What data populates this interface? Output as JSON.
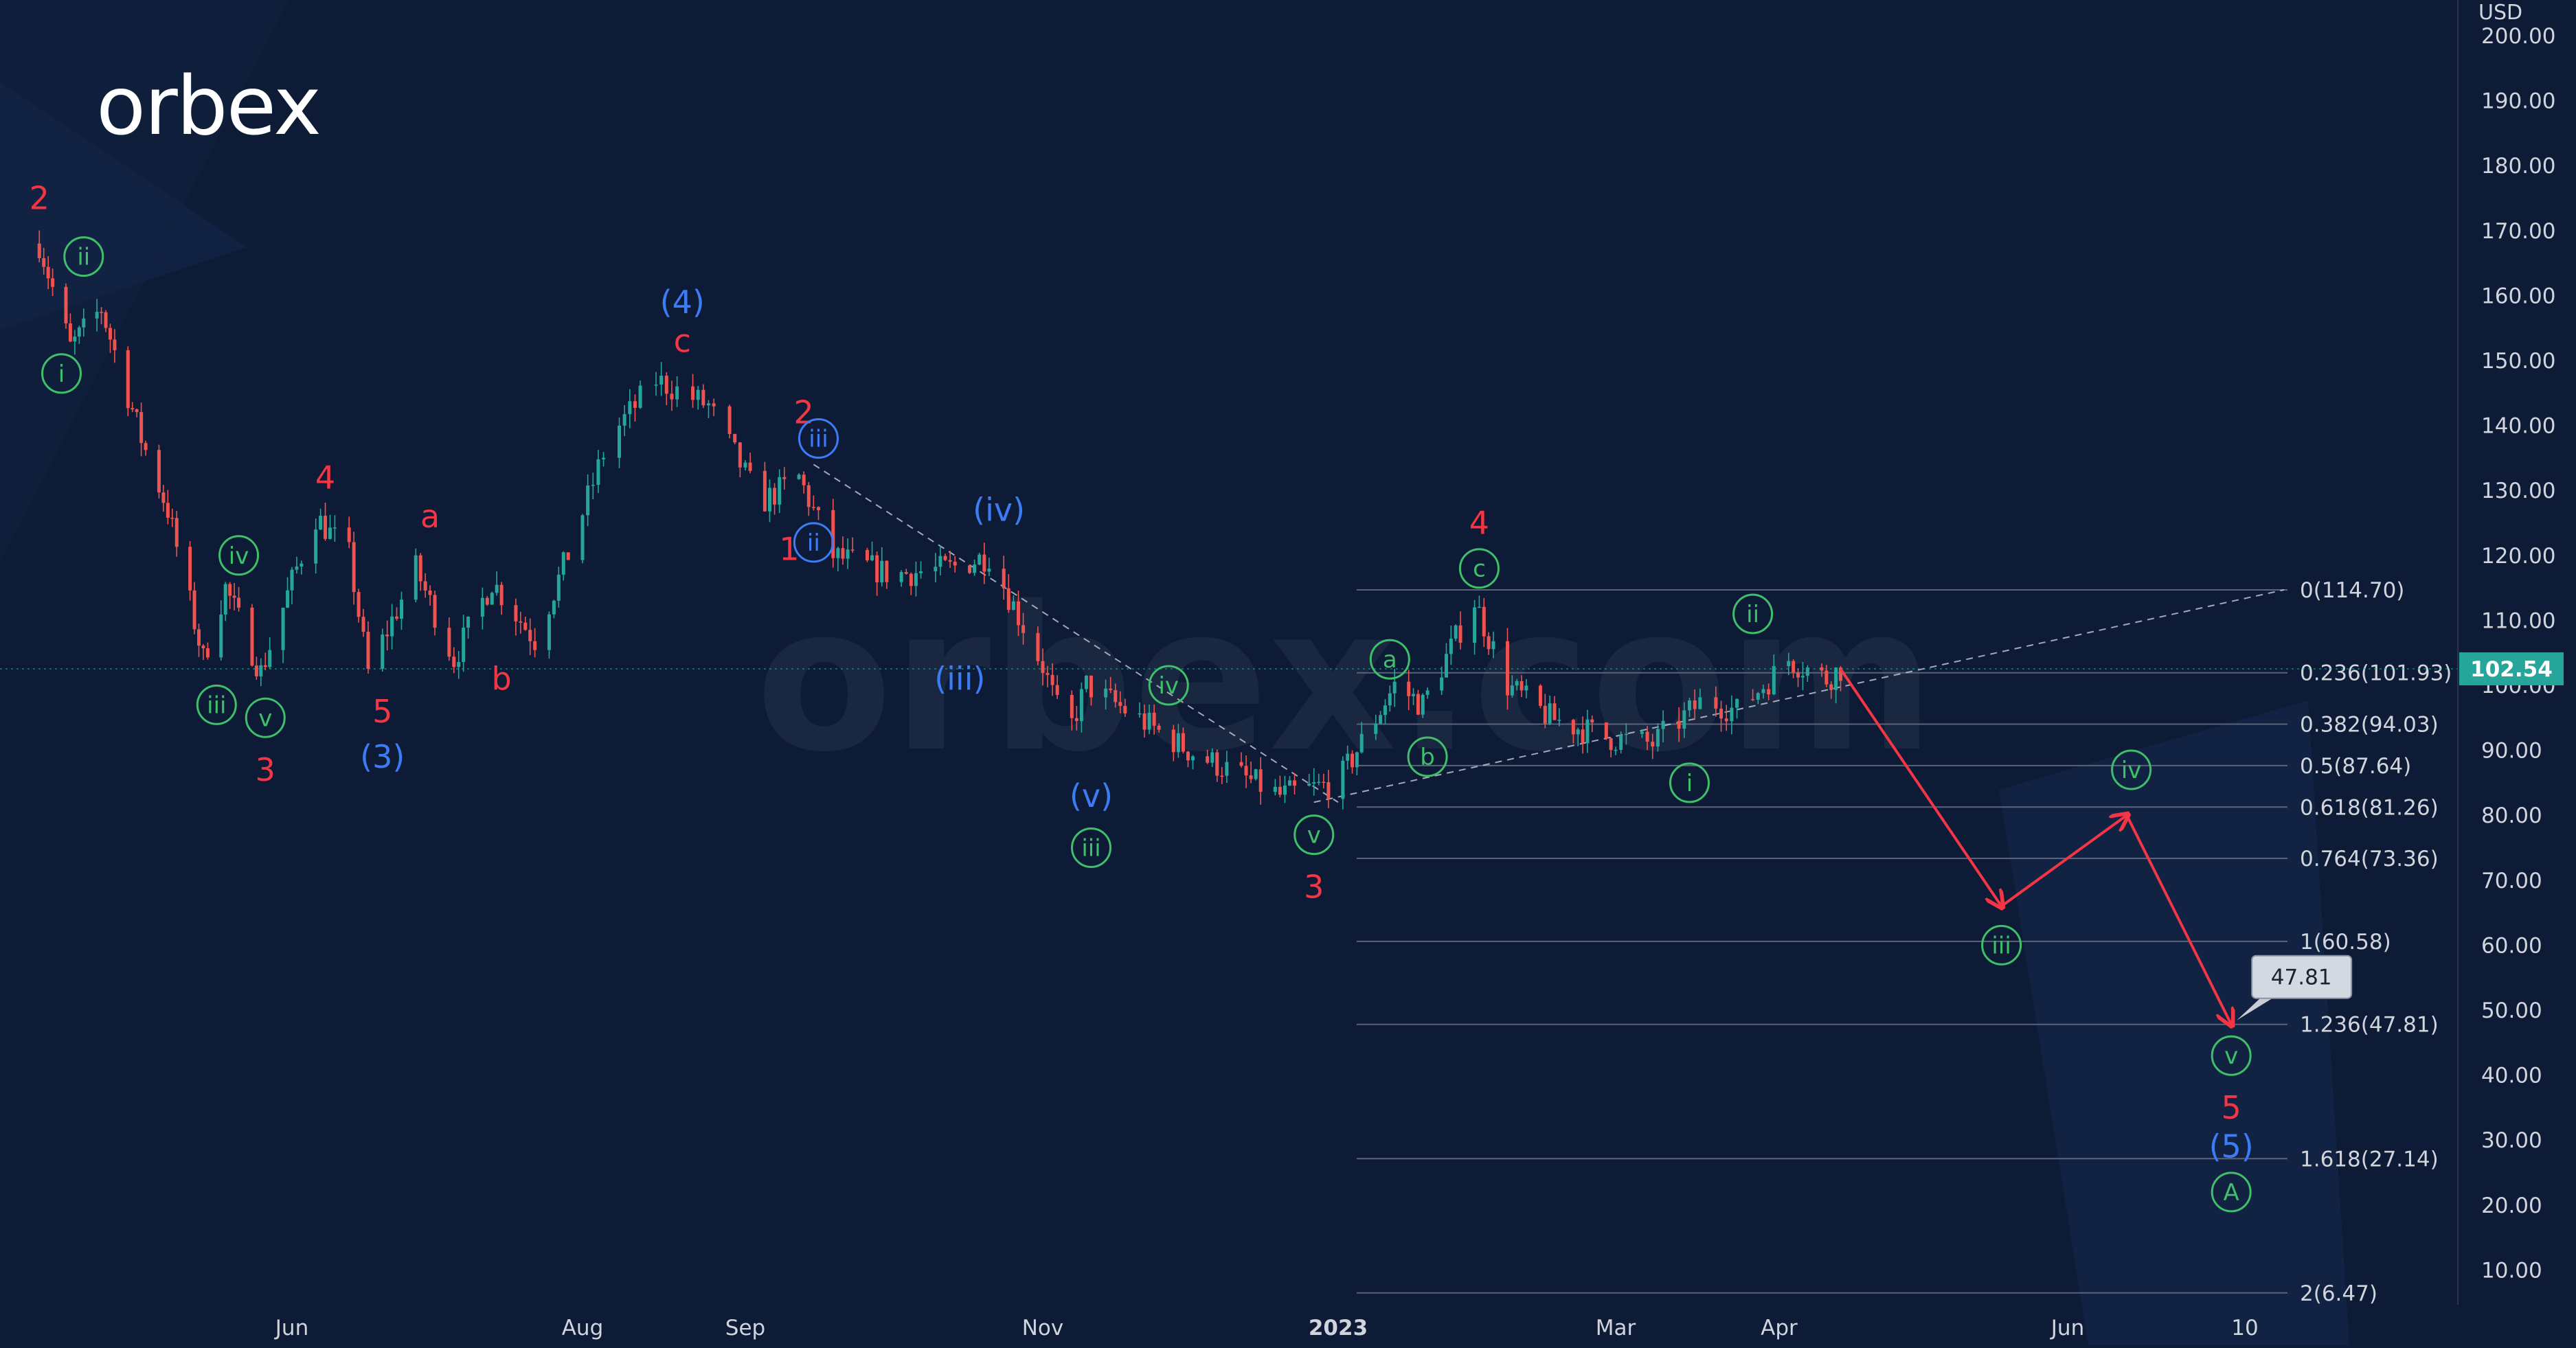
{
  "brand": {
    "logo_text": "orbex",
    "watermark": "orbex.com"
  },
  "currency": "USD",
  "chart_data": {
    "type": "candlestick",
    "title": "",
    "grid": false,
    "ylim": [
      0,
      205
    ],
    "y_ticks": [
      "10.00",
      "20.00",
      "30.00",
      "40.00",
      "50.00",
      "60.00",
      "70.00",
      "80.00",
      "90.00",
      "100.00",
      "110.00",
      "120.00",
      "130.00",
      "140.00",
      "150.00",
      "160.00",
      "170.00",
      "180.00",
      "190.00",
      "200.00"
    ],
    "x_ticks": [
      "Jun",
      "Aug",
      "Sep",
      "Nov",
      "2023",
      "Mar",
      "Apr",
      "Jun",
      "10"
    ],
    "last_price": 102.54,
    "last_price_label": "102.54",
    "target_label": "47.81",
    "fib_levels": [
      {
        "value": 114.7,
        "label": "0(114.70)"
      },
      {
        "value": 101.93,
        "label": "0.236(101.93)"
      },
      {
        "value": 94.03,
        "label": "0.382(94.03)"
      },
      {
        "value": 87.64,
        "label": "0.5(87.64)"
      },
      {
        "value": 81.26,
        "label": "0.618(81.26)"
      },
      {
        "value": 73.36,
        "label": "0.764(73.36)"
      },
      {
        "value": 60.58,
        "label": "1(60.58)"
      },
      {
        "value": 47.81,
        "label": "1.236(47.81)"
      },
      {
        "value": 27.14,
        "label": "1.618(27.14)"
      },
      {
        "value": 6.47,
        "label": "2(6.47)"
      }
    ],
    "price_path": [
      [
        "2022-04-05",
        168
      ],
      [
        "2022-04-12",
        152
      ],
      [
        "2022-04-19",
        158
      ],
      [
        "2022-04-28",
        138
      ],
      [
        "2022-05-04",
        127
      ],
      [
        "2022-05-12",
        104
      ],
      [
        "2022-05-17",
        115
      ],
      [
        "2022-05-25",
        102
      ],
      [
        "2022-06-06",
        126
      ],
      [
        "2022-06-13",
        120
      ],
      [
        "2022-06-17",
        102
      ],
      [
        "2022-06-27",
        118
      ],
      [
        "2022-07-05",
        104
      ],
      [
        "2022-07-13",
        116
      ],
      [
        "2022-07-22",
        107
      ],
      [
        "2022-07-30",
        122
      ],
      [
        "2022-08-06",
        138
      ],
      [
        "2022-08-15",
        147
      ],
      [
        "2022-08-25",
        143
      ],
      [
        "2022-09-04",
        128
      ],
      [
        "2022-09-12",
        132
      ],
      [
        "2022-09-19",
        120
      ],
      [
        "2022-10-01",
        117
      ],
      [
        "2022-10-13",
        118
      ],
      [
        "2022-10-21",
        120
      ],
      [
        "2022-11-01",
        103
      ],
      [
        "2022-11-06",
        92
      ],
      [
        "2022-11-10",
        100
      ],
      [
        "2022-12-01",
        90
      ],
      [
        "2022-12-20",
        83
      ],
      [
        "2023-01-01",
        85
      ],
      [
        "2023-01-13",
        100
      ],
      [
        "2023-01-19",
        97
      ],
      [
        "2023-01-30",
        113
      ],
      [
        "2023-02-06",
        100
      ],
      [
        "2023-02-15",
        95
      ],
      [
        "2023-02-27",
        92
      ],
      [
        "2023-03-08",
        91
      ],
      [
        "2023-03-18",
        98
      ],
      [
        "2023-03-24",
        96
      ],
      [
        "2023-04-03",
        104
      ],
      [
        "2023-04-11",
        101
      ],
      [
        "2023-04-14",
        102.54
      ]
    ],
    "forecast_path": [
      [
        "2023-04-14",
        102.5
      ],
      [
        "2023-05-18",
        66
      ],
      [
        "2023-06-14",
        80
      ],
      [
        "2023-07-07",
        47.81
      ]
    ],
    "wave_labels": [
      {
        "text": "2",
        "color": "red",
        "date": "2022-04-05",
        "price": 175
      },
      {
        "text": "ii",
        "color": "green",
        "circled": true,
        "date": "2022-04-15",
        "price": 166
      },
      {
        "text": "i",
        "color": "green",
        "circled": true,
        "date": "2022-04-10",
        "price": 148
      },
      {
        "text": "iv",
        "color": "green",
        "circled": true,
        "date": "2022-05-20",
        "price": 120
      },
      {
        "text": "iii",
        "color": "green",
        "circled": true,
        "date": "2022-05-15",
        "price": 97
      },
      {
        "text": "v",
        "color": "green",
        "circled": true,
        "date": "2022-05-26",
        "price": 95
      },
      {
        "text": "3",
        "color": "red",
        "date": "2022-05-26",
        "price": 87
      },
      {
        "text": "4",
        "color": "red",
        "date": "2022-06-08",
        "price": 132
      },
      {
        "text": "5",
        "color": "red",
        "date": "2022-06-20",
        "price": 96
      },
      {
        "text": "(3)",
        "color": "blue",
        "date": "2022-06-20",
        "price": 89
      },
      {
        "text": "a",
        "color": "red",
        "date": "2022-06-30",
        "price": 126
      },
      {
        "text": "b",
        "color": "red",
        "date": "2022-07-15",
        "price": 101
      },
      {
        "text": "(4)",
        "color": "blue",
        "date": "2022-08-20",
        "price": 159
      },
      {
        "text": "c",
        "color": "red",
        "date": "2022-08-20",
        "price": 153
      },
      {
        "text": "2",
        "color": "red",
        "date": "2022-09-13",
        "price": 142
      },
      {
        "text": "iii",
        "color": "blue",
        "circled": true,
        "date": "2022-09-16",
        "price": 138
      },
      {
        "text": "1",
        "color": "red",
        "date": "2022-09-10",
        "price": 121
      },
      {
        "text": "ii",
        "color": "blue",
        "circled": true,
        "date": "2022-09-15",
        "price": 122
      },
      {
        "text": "(iv)",
        "color": "blue",
        "date": "2022-10-23",
        "price": 127
      },
      {
        "text": "(iii)",
        "color": "blue",
        "date": "2022-10-15",
        "price": 101
      },
      {
        "text": "iv",
        "color": "green",
        "circled": true,
        "date": "2022-11-27",
        "price": 100
      },
      {
        "text": "(v)",
        "color": "blue",
        "date": "2022-11-11",
        "price": 83
      },
      {
        "text": "iii",
        "color": "green",
        "circled": true,
        "date": "2022-11-11",
        "price": 75
      },
      {
        "text": "v",
        "color": "green",
        "circled": true,
        "date": "2022-12-27",
        "price": 77
      },
      {
        "text": "3",
        "color": "red",
        "date": "2022-12-27",
        "price": 69
      },
      {
        "text": "4",
        "color": "red",
        "date": "2023-01-31",
        "price": 125
      },
      {
        "text": "c",
        "color": "green",
        "circled": true,
        "date": "2023-01-31",
        "price": 118
      },
      {
        "text": "a",
        "color": "green",
        "circled": true,
        "date": "2023-01-12",
        "price": 104
      },
      {
        "text": "b",
        "color": "green",
        "circled": true,
        "date": "2023-01-20",
        "price": 89
      },
      {
        "text": "ii",
        "color": "green",
        "circled": true,
        "date": "2023-03-27",
        "price": 111
      },
      {
        "text": "i",
        "color": "green",
        "circled": true,
        "date": "2023-03-15",
        "price": 85
      },
      {
        "text": "iv",
        "color": "green",
        "circled": true,
        "date": "2023-06-15",
        "price": 87
      },
      {
        "text": "iii",
        "color": "green",
        "circled": true,
        "date": "2023-05-18",
        "price": 60
      },
      {
        "text": "v",
        "color": "green",
        "circled": true,
        "date": "2023-07-07",
        "price": 43
      },
      {
        "text": "5",
        "color": "red",
        "date": "2023-07-07",
        "price": 35
      },
      {
        "text": "(5)",
        "color": "blue",
        "date": "2023-07-07",
        "price": 29
      },
      {
        "text": "A",
        "color": "green",
        "circled": true,
        "date": "2023-07-07",
        "price": 22
      }
    ]
  },
  "colors": {
    "background": "#0d1b36",
    "up_candle": "#26a69a",
    "down_candle": "#ef5350",
    "red_label": "#f23645",
    "green_label": "#3fbf6a",
    "blue_label": "#3d7cf5",
    "forecast_arrow": "#f23645",
    "fib_line": "#5a6378",
    "axis_text": "#d1d4dc",
    "last_price_bg": "#26a69a"
  }
}
